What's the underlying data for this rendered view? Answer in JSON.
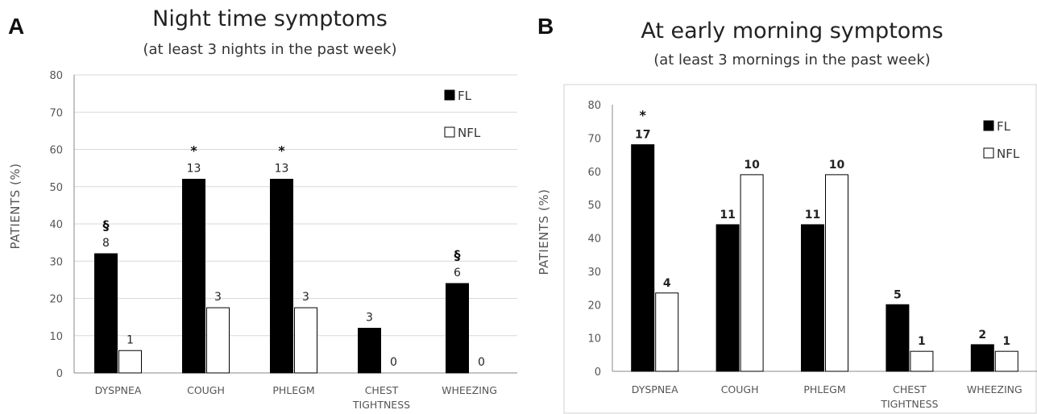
{
  "chart_data": [
    {
      "type": "bar",
      "panel": "A",
      "title": "Night time symptoms",
      "subtitle": "(at least 3 nights in the past week)",
      "ylabel": "PATIENTS (%)",
      "xlabel": "",
      "ylim": [
        0,
        80
      ],
      "yticks": [
        0,
        10,
        20,
        30,
        40,
        50,
        60,
        70,
        80
      ],
      "grid": true,
      "legend_position": "top-right",
      "categories": [
        [
          "DYSPNEA"
        ],
        [
          "COUGH"
        ],
        [
          "PHLEGM"
        ],
        [
          "CHEST",
          "TIGHTNESS"
        ],
        [
          "WHEEZING"
        ]
      ],
      "series": [
        {
          "name": "FL",
          "color": "#000000",
          "values": [
            32,
            52,
            52,
            12,
            24
          ],
          "labels": [
            "8",
            "13",
            "13",
            "3",
            "6"
          ]
        },
        {
          "name": "NFL",
          "color": "#ffffff",
          "values": [
            6,
            17.5,
            17.5,
            0,
            0
          ],
          "labels": [
            "1",
            "3",
            "3",
            "0",
            "0"
          ]
        }
      ],
      "annotations": [
        "§",
        "*",
        "*",
        "",
        "§"
      ]
    },
    {
      "type": "bar",
      "panel": "B",
      "title": "At early morning symptoms",
      "subtitle": "(at least 3 mornings in the past week)",
      "ylabel": "PATIENTS  (%)",
      "xlabel": "",
      "ylim": [
        0,
        80
      ],
      "yticks": [
        0,
        10,
        20,
        30,
        40,
        50,
        60,
        70,
        80
      ],
      "grid": false,
      "legend_position": "top-right",
      "categories": [
        [
          "DYSPNEA"
        ],
        [
          "COUGH"
        ],
        [
          "PHLEGM"
        ],
        [
          "CHEST",
          "TIGHTNESS"
        ],
        [
          "WHEEZING"
        ]
      ],
      "series": [
        {
          "name": "FL",
          "color": "#000000",
          "values": [
            68,
            44,
            44,
            20,
            8
          ],
          "labels": [
            "17",
            "11",
            "11",
            "5",
            "2"
          ]
        },
        {
          "name": "NFL",
          "color": "#ffffff",
          "values": [
            23.5,
            59,
            59,
            6,
            6
          ],
          "labels": [
            "4",
            "10",
            "10",
            "1",
            "1"
          ]
        }
      ],
      "annotations": [
        "*",
        "",
        "",
        "",
        ""
      ]
    }
  ]
}
